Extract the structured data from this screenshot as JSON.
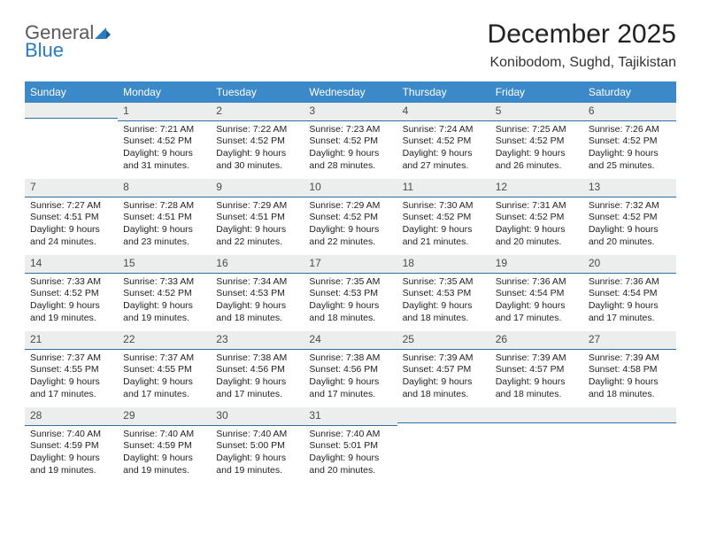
{
  "logo": {
    "word1": "General",
    "word2": "Blue"
  },
  "title": "December 2025",
  "location": "Konibodom, Sughd, Tajikistan",
  "weekdays": [
    "Sunday",
    "Monday",
    "Tuesday",
    "Wednesday",
    "Thursday",
    "Friday",
    "Saturday"
  ],
  "colors": {
    "header_bg": "#3b89c9",
    "header_text": "#ffffff",
    "daynum_bg": "#eceded",
    "daynum_border": "#2f6fa6",
    "body_text": "#222222",
    "logo_blue": "#2b7bbf",
    "logo_gray": "#5a5a5a"
  },
  "weeks": [
    [
      {
        "num": "",
        "sunrise": "",
        "sunset": "",
        "daylight": ""
      },
      {
        "num": "1",
        "sunrise": "Sunrise: 7:21 AM",
        "sunset": "Sunset: 4:52 PM",
        "daylight": "Daylight: 9 hours and 31 minutes."
      },
      {
        "num": "2",
        "sunrise": "Sunrise: 7:22 AM",
        "sunset": "Sunset: 4:52 PM",
        "daylight": "Daylight: 9 hours and 30 minutes."
      },
      {
        "num": "3",
        "sunrise": "Sunrise: 7:23 AM",
        "sunset": "Sunset: 4:52 PM",
        "daylight": "Daylight: 9 hours and 28 minutes."
      },
      {
        "num": "4",
        "sunrise": "Sunrise: 7:24 AM",
        "sunset": "Sunset: 4:52 PM",
        "daylight": "Daylight: 9 hours and 27 minutes."
      },
      {
        "num": "5",
        "sunrise": "Sunrise: 7:25 AM",
        "sunset": "Sunset: 4:52 PM",
        "daylight": "Daylight: 9 hours and 26 minutes."
      },
      {
        "num": "6",
        "sunrise": "Sunrise: 7:26 AM",
        "sunset": "Sunset: 4:52 PM",
        "daylight": "Daylight: 9 hours and 25 minutes."
      }
    ],
    [
      {
        "num": "7",
        "sunrise": "Sunrise: 7:27 AM",
        "sunset": "Sunset: 4:51 PM",
        "daylight": "Daylight: 9 hours and 24 minutes."
      },
      {
        "num": "8",
        "sunrise": "Sunrise: 7:28 AM",
        "sunset": "Sunset: 4:51 PM",
        "daylight": "Daylight: 9 hours and 23 minutes."
      },
      {
        "num": "9",
        "sunrise": "Sunrise: 7:29 AM",
        "sunset": "Sunset: 4:51 PM",
        "daylight": "Daylight: 9 hours and 22 minutes."
      },
      {
        "num": "10",
        "sunrise": "Sunrise: 7:29 AM",
        "sunset": "Sunset: 4:52 PM",
        "daylight": "Daylight: 9 hours and 22 minutes."
      },
      {
        "num": "11",
        "sunrise": "Sunrise: 7:30 AM",
        "sunset": "Sunset: 4:52 PM",
        "daylight": "Daylight: 9 hours and 21 minutes."
      },
      {
        "num": "12",
        "sunrise": "Sunrise: 7:31 AM",
        "sunset": "Sunset: 4:52 PM",
        "daylight": "Daylight: 9 hours and 20 minutes."
      },
      {
        "num": "13",
        "sunrise": "Sunrise: 7:32 AM",
        "sunset": "Sunset: 4:52 PM",
        "daylight": "Daylight: 9 hours and 20 minutes."
      }
    ],
    [
      {
        "num": "14",
        "sunrise": "Sunrise: 7:33 AM",
        "sunset": "Sunset: 4:52 PM",
        "daylight": "Daylight: 9 hours and 19 minutes."
      },
      {
        "num": "15",
        "sunrise": "Sunrise: 7:33 AM",
        "sunset": "Sunset: 4:52 PM",
        "daylight": "Daylight: 9 hours and 19 minutes."
      },
      {
        "num": "16",
        "sunrise": "Sunrise: 7:34 AM",
        "sunset": "Sunset: 4:53 PM",
        "daylight": "Daylight: 9 hours and 18 minutes."
      },
      {
        "num": "17",
        "sunrise": "Sunrise: 7:35 AM",
        "sunset": "Sunset: 4:53 PM",
        "daylight": "Daylight: 9 hours and 18 minutes."
      },
      {
        "num": "18",
        "sunrise": "Sunrise: 7:35 AM",
        "sunset": "Sunset: 4:53 PM",
        "daylight": "Daylight: 9 hours and 18 minutes."
      },
      {
        "num": "19",
        "sunrise": "Sunrise: 7:36 AM",
        "sunset": "Sunset: 4:54 PM",
        "daylight": "Daylight: 9 hours and 17 minutes."
      },
      {
        "num": "20",
        "sunrise": "Sunrise: 7:36 AM",
        "sunset": "Sunset: 4:54 PM",
        "daylight": "Daylight: 9 hours and 17 minutes."
      }
    ],
    [
      {
        "num": "21",
        "sunrise": "Sunrise: 7:37 AM",
        "sunset": "Sunset: 4:55 PM",
        "daylight": "Daylight: 9 hours and 17 minutes."
      },
      {
        "num": "22",
        "sunrise": "Sunrise: 7:37 AM",
        "sunset": "Sunset: 4:55 PM",
        "daylight": "Daylight: 9 hours and 17 minutes."
      },
      {
        "num": "23",
        "sunrise": "Sunrise: 7:38 AM",
        "sunset": "Sunset: 4:56 PM",
        "daylight": "Daylight: 9 hours and 17 minutes."
      },
      {
        "num": "24",
        "sunrise": "Sunrise: 7:38 AM",
        "sunset": "Sunset: 4:56 PM",
        "daylight": "Daylight: 9 hours and 17 minutes."
      },
      {
        "num": "25",
        "sunrise": "Sunrise: 7:39 AM",
        "sunset": "Sunset: 4:57 PM",
        "daylight": "Daylight: 9 hours and 18 minutes."
      },
      {
        "num": "26",
        "sunrise": "Sunrise: 7:39 AM",
        "sunset": "Sunset: 4:57 PM",
        "daylight": "Daylight: 9 hours and 18 minutes."
      },
      {
        "num": "27",
        "sunrise": "Sunrise: 7:39 AM",
        "sunset": "Sunset: 4:58 PM",
        "daylight": "Daylight: 9 hours and 18 minutes."
      }
    ],
    [
      {
        "num": "28",
        "sunrise": "Sunrise: 7:40 AM",
        "sunset": "Sunset: 4:59 PM",
        "daylight": "Daylight: 9 hours and 19 minutes."
      },
      {
        "num": "29",
        "sunrise": "Sunrise: 7:40 AM",
        "sunset": "Sunset: 4:59 PM",
        "daylight": "Daylight: 9 hours and 19 minutes."
      },
      {
        "num": "30",
        "sunrise": "Sunrise: 7:40 AM",
        "sunset": "Sunset: 5:00 PM",
        "daylight": "Daylight: 9 hours and 19 minutes."
      },
      {
        "num": "31",
        "sunrise": "Sunrise: 7:40 AM",
        "sunset": "Sunset: 5:01 PM",
        "daylight": "Daylight: 9 hours and 20 minutes."
      },
      {
        "num": "",
        "sunrise": "",
        "sunset": "",
        "daylight": ""
      },
      {
        "num": "",
        "sunrise": "",
        "sunset": "",
        "daylight": ""
      },
      {
        "num": "",
        "sunrise": "",
        "sunset": "",
        "daylight": ""
      }
    ]
  ]
}
